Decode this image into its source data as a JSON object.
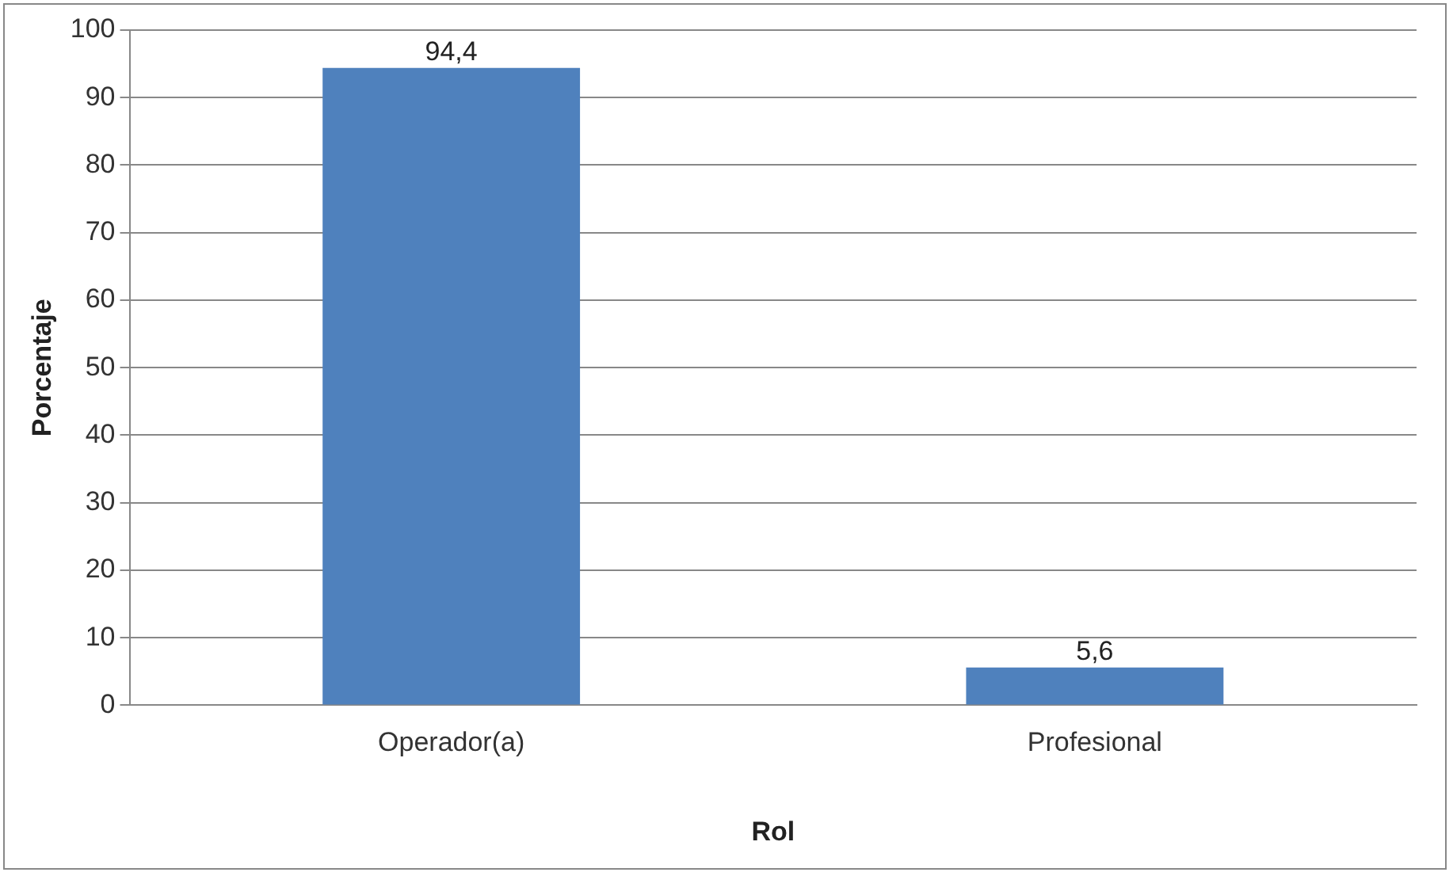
{
  "chart_data": {
    "type": "bar",
    "xlabel": "Rol",
    "ylabel": "Porcentaje",
    "categories": [
      "Operador(a)",
      "Profesional"
    ],
    "values": [
      94.4,
      5.6
    ],
    "value_labels": [
      "94,4",
      "5,6"
    ],
    "color": "#4f81bd",
    "ylim": [
      0,
      100
    ],
    "yticks": [
      0,
      10,
      20,
      30,
      40,
      50,
      60,
      70,
      80,
      90,
      100
    ],
    "grid": "y",
    "legend": false
  }
}
